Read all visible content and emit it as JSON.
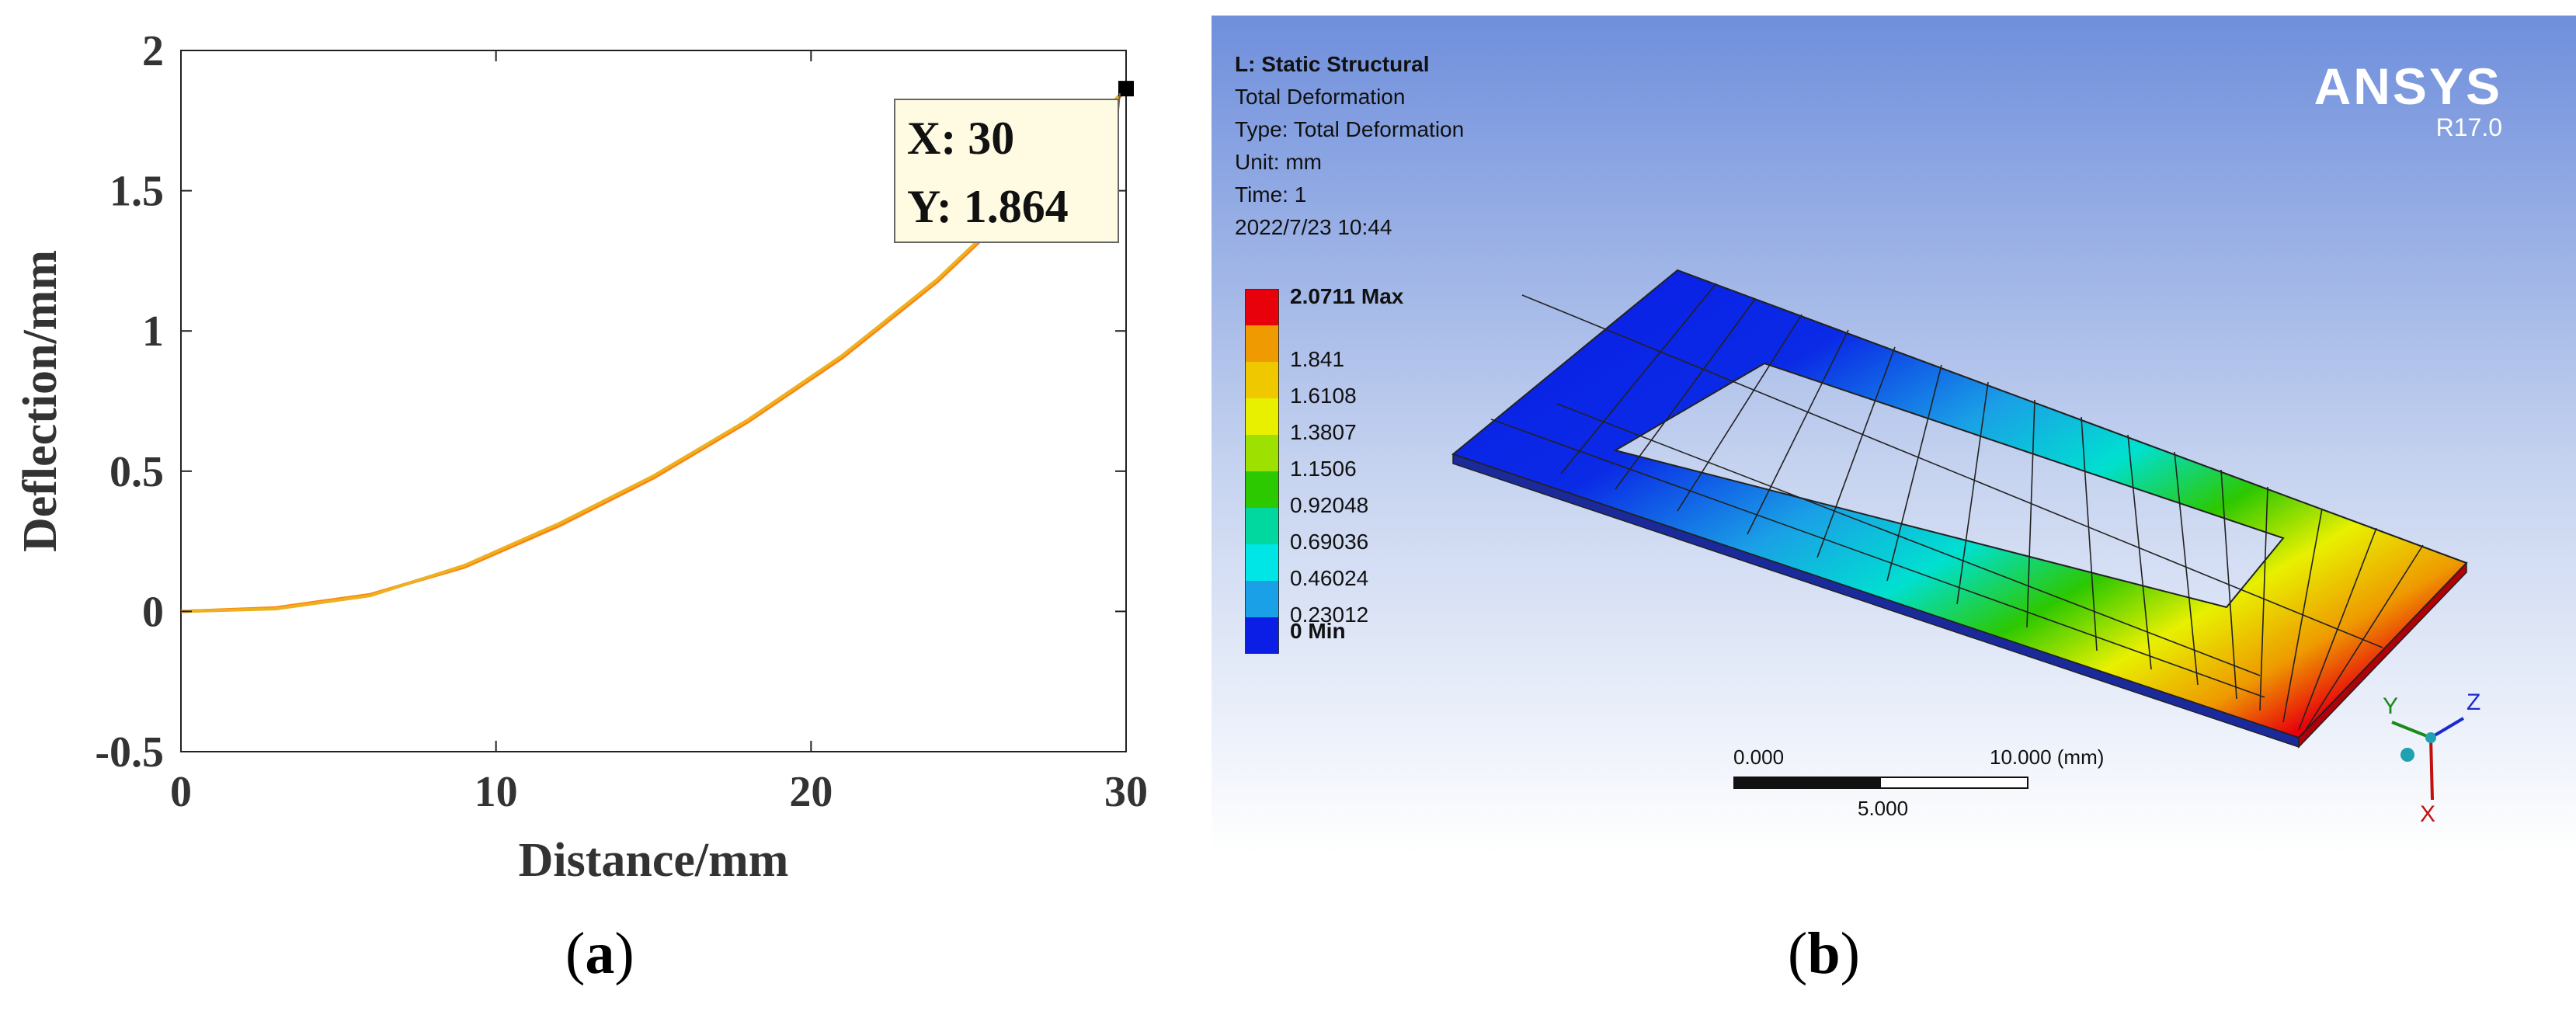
{
  "panel_a": {
    "caption_open": "(",
    "caption_letter": "a",
    "caption_close": ")",
    "chart_data": {
      "type": "line",
      "xlabel": "Distance/mm",
      "ylabel": "Deflection/mm",
      "xlim": [
        0,
        30
      ],
      "ylim": [
        -0.5,
        2
      ],
      "x_ticks": [
        "0",
        "10",
        "20",
        "30"
      ],
      "y_ticks": [
        "-0.5",
        "0",
        "0.5",
        "1",
        "1.5",
        "2"
      ],
      "grid": false,
      "series": [
        {
          "color": "#1f77b4",
          "x": [
            0,
            3,
            6,
            9,
            12,
            15,
            18,
            21,
            24,
            27,
            30
          ],
          "y": [
            0,
            0.011,
            0.058,
            0.162,
            0.31,
            0.48,
            0.68,
            0.91,
            1.18,
            1.5,
            1.864
          ]
        },
        {
          "color": "#ff7f0e",
          "x": [
            0,
            3,
            6,
            9,
            12,
            15,
            18,
            21,
            24,
            27,
            30
          ],
          "y": [
            0,
            0.013,
            0.06,
            0.158,
            0.305,
            0.476,
            0.676,
            0.905,
            1.175,
            1.495,
            1.86
          ]
        },
        {
          "color": "#edb120",
          "x": [
            0,
            3,
            6,
            9,
            12,
            15,
            18,
            21,
            24,
            27,
            30
          ],
          "y": [
            0,
            0.009,
            0.056,
            0.164,
            0.313,
            0.483,
            0.683,
            0.913,
            1.183,
            1.503,
            1.866
          ]
        }
      ],
      "datatip": {
        "x_text": "X: 30",
        "y_text": "Y: 1.864",
        "x": 30,
        "y": 1.864
      }
    }
  },
  "panel_b": {
    "caption_open": "(",
    "caption_letter": "b",
    "caption_close": ")",
    "info": [
      "L: Static Structural",
      "Total Deformation",
      "Type: Total Deformation",
      "Unit: mm",
      "Time: 1",
      "2022/7/23 10:44"
    ],
    "legend": [
      {
        "label": "2.0711 Max",
        "color": "#e8000b",
        "bold": true
      },
      {
        "label": "1.841",
        "color": "#ee9a00",
        "bold": false
      },
      {
        "label": "1.6108",
        "color": "#f0c800",
        "bold": false
      },
      {
        "label": "1.3807",
        "color": "#e8f000",
        "bold": false
      },
      {
        "label": "1.1506",
        "color": "#9ee000",
        "bold": false
      },
      {
        "label": "0.92048",
        "color": "#2cc800",
        "bold": false
      },
      {
        "label": "0.69036",
        "color": "#00d8a0",
        "bold": false
      },
      {
        "label": "0.46024",
        "color": "#00e6e6",
        "bold": false
      },
      {
        "label": "0.23012",
        "color": "#1aa0e6",
        "bold": false
      },
      {
        "label": "0 Min",
        "color": "#0a1ee6",
        "bold": true
      }
    ],
    "brand": {
      "name": "ANSYS",
      "version": "R17.0"
    },
    "scale": {
      "left": "0.000",
      "right": "10.000 (mm)",
      "mid": "5.000"
    },
    "axes": {
      "x": "X",
      "y": "Y",
      "z": "Z"
    }
  }
}
